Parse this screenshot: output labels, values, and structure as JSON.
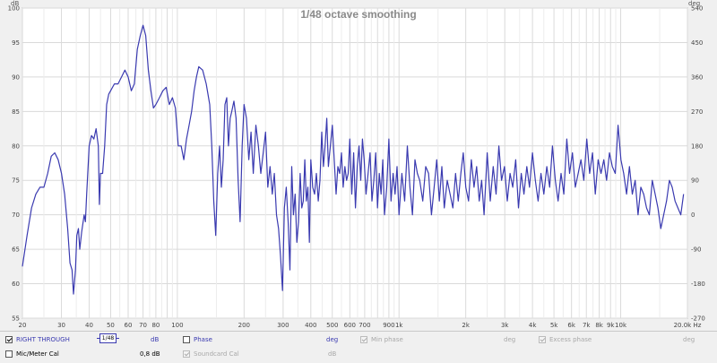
{
  "chart_data": {
    "type": "line",
    "title": "1/48 octave smoothing",
    "y_unit": "dB",
    "y2_unit": "deg",
    "x_unit": "Hz",
    "x_scale": "log",
    "xlim": [
      20,
      20000
    ],
    "ylim": [
      55,
      100
    ],
    "y2lim": [
      -270,
      540
    ],
    "grid": true,
    "y_ticks": [
      "100",
      "95",
      "90",
      "85",
      "80",
      "75",
      "70",
      "65",
      "60",
      "55"
    ],
    "y2_ticks": [
      "540",
      "450",
      "360",
      "270",
      "180",
      "90",
      "0",
      "-90",
      "-180",
      "-270"
    ],
    "x_major_ticks": [
      {
        "v": 20,
        "label": "20"
      },
      {
        "v": 30,
        "label": "30"
      },
      {
        "v": 40,
        "label": "40"
      },
      {
        "v": 50,
        "label": "50"
      },
      {
        "v": 60,
        "label": "60"
      },
      {
        "v": 70,
        "label": "70"
      },
      {
        "v": 80,
        "label": "80"
      },
      {
        "v": 90,
        "label": ""
      },
      {
        "v": 100,
        "label": "100"
      },
      {
        "v": 200,
        "label": "200"
      },
      {
        "v": 300,
        "label": "300"
      },
      {
        "v": 400,
        "label": "400"
      },
      {
        "v": 500,
        "label": "500"
      },
      {
        "v": 600,
        "label": "600"
      },
      {
        "v": 700,
        "label": "700"
      },
      {
        "v": 800,
        "label": ""
      },
      {
        "v": 900,
        "label": "900"
      },
      {
        "v": 1000,
        "label": "1k"
      },
      {
        "v": 2000,
        "label": "2k"
      },
      {
        "v": 3000,
        "label": "3k"
      },
      {
        "v": 4000,
        "label": "4k"
      },
      {
        "v": 5000,
        "label": "5k"
      },
      {
        "v": 6000,
        "label": "6k"
      },
      {
        "v": 7000,
        "label": "7k"
      },
      {
        "v": 8000,
        "label": "8k"
      },
      {
        "v": 9000,
        "label": "9k"
      },
      {
        "v": 10000,
        "label": "10k"
      },
      {
        "v": 20000,
        "label": "20.0k Hz"
      }
    ],
    "series": [
      {
        "name": "RIGHT THROUGH",
        "color": "#3a3ab0",
        "points": [
          [
            20,
            62.5
          ],
          [
            21,
            67
          ],
          [
            22,
            71
          ],
          [
            23,
            73
          ],
          [
            24,
            74
          ],
          [
            25,
            74
          ],
          [
            26,
            76
          ],
          [
            27,
            78.5
          ],
          [
            28,
            79
          ],
          [
            29,
            78
          ],
          [
            30,
            76
          ],
          [
            31,
            73
          ],
          [
            32,
            68
          ],
          [
            32.8,
            63
          ],
          [
            33.5,
            62
          ],
          [
            34,
            58.5
          ],
          [
            34.7,
            62
          ],
          [
            35.2,
            67
          ],
          [
            35.8,
            68
          ],
          [
            36.3,
            65
          ],
          [
            37,
            67.5
          ],
          [
            38,
            70
          ],
          [
            38.5,
            69
          ],
          [
            39,
            73
          ],
          [
            40,
            80
          ],
          [
            41,
            81.5
          ],
          [
            42,
            81
          ],
          [
            43,
            82.5
          ],
          [
            44,
            80
          ],
          [
            44.5,
            71.5
          ],
          [
            45,
            76
          ],
          [
            46,
            76
          ],
          [
            47,
            80
          ],
          [
            48,
            86
          ],
          [
            49,
            87.5
          ],
          [
            50,
            88
          ],
          [
            52,
            89
          ],
          [
            54,
            89
          ],
          [
            56,
            90
          ],
          [
            58,
            91
          ],
          [
            60,
            90
          ],
          [
            62,
            88
          ],
          [
            64,
            89
          ],
          [
            66,
            94
          ],
          [
            68,
            96
          ],
          [
            70,
            97.5
          ],
          [
            72,
            96
          ],
          [
            74,
            91
          ],
          [
            76,
            88
          ],
          [
            78,
            85.5
          ],
          [
            80,
            86
          ],
          [
            83,
            87
          ],
          [
            86,
            88
          ],
          [
            89,
            88.5
          ],
          [
            92,
            86
          ],
          [
            95,
            87
          ],
          [
            98,
            85.5
          ],
          [
            101,
            80
          ],
          [
            104,
            80
          ],
          [
            107,
            78
          ],
          [
            110,
            81
          ],
          [
            113,
            83
          ],
          [
            116,
            85
          ],
          [
            119,
            88
          ],
          [
            122,
            90
          ],
          [
            125,
            91.5
          ],
          [
            130,
            91
          ],
          [
            135,
            89
          ],
          [
            140,
            86
          ],
          [
            143,
            80
          ],
          [
            146,
            72
          ],
          [
            149,
            67
          ],
          [
            152,
            76
          ],
          [
            155,
            80
          ],
          [
            158,
            74
          ],
          [
            161,
            78
          ],
          [
            164,
            86
          ],
          [
            167,
            87
          ],
          [
            170,
            80
          ],
          [
            173,
            84
          ],
          [
            176,
            85
          ],
          [
            180,
            86.5
          ],
          [
            184,
            84
          ],
          [
            188,
            75
          ],
          [
            192,
            69
          ],
          [
            196,
            80
          ],
          [
            200,
            86
          ],
          [
            205,
            84
          ],
          [
            210,
            78
          ],
          [
            215,
            82
          ],
          [
            220,
            76
          ],
          [
            226,
            83
          ],
          [
            232,
            80
          ],
          [
            238,
            76
          ],
          [
            244,
            79
          ],
          [
            250,
            82
          ],
          [
            256,
            74
          ],
          [
            262,
            77
          ],
          [
            268,
            73
          ],
          [
            274,
            76
          ],
          [
            280,
            70
          ],
          [
            286,
            68
          ],
          [
            292,
            64
          ],
          [
            298,
            59
          ],
          [
            304,
            71
          ],
          [
            310,
            74
          ],
          [
            316,
            69
          ],
          [
            322,
            62
          ],
          [
            328,
            77
          ],
          [
            334,
            70
          ],
          [
            340,
            73
          ],
          [
            346,
            66
          ],
          [
            352,
            69
          ],
          [
            358,
            76
          ],
          [
            364,
            71
          ],
          [
            370,
            72
          ],
          [
            376,
            78
          ],
          [
            382,
            72
          ],
          [
            388,
            74
          ],
          [
            394,
            66
          ],
          [
            400,
            78
          ],
          [
            408,
            74
          ],
          [
            416,
            73
          ],
          [
            424,
            76
          ],
          [
            432,
            72
          ],
          [
            440,
            75
          ],
          [
            448,
            82
          ],
          [
            456,
            77
          ],
          [
            464,
            80
          ],
          [
            472,
            84
          ],
          [
            480,
            77
          ],
          [
            490,
            80
          ],
          [
            500,
            83
          ],
          [
            510,
            78
          ],
          [
            520,
            73
          ],
          [
            530,
            77
          ],
          [
            540,
            76
          ],
          [
            550,
            79
          ],
          [
            560,
            74
          ],
          [
            570,
            77
          ],
          [
            580,
            75
          ],
          [
            590,
            76
          ],
          [
            600,
            81
          ],
          [
            612,
            73
          ],
          [
            624,
            79
          ],
          [
            636,
            71
          ],
          [
            648,
            77
          ],
          [
            660,
            80
          ],
          [
            672,
            75
          ],
          [
            684,
            81
          ],
          [
            696,
            78
          ],
          [
            710,
            73
          ],
          [
            725,
            76
          ],
          [
            740,
            79
          ],
          [
            755,
            72
          ],
          [
            770,
            75
          ],
          [
            785,
            79
          ],
          [
            800,
            71
          ],
          [
            815,
            76
          ],
          [
            830,
            73
          ],
          [
            845,
            78
          ],
          [
            860,
            70
          ],
          [
            880,
            74
          ],
          [
            900,
            81
          ],
          [
            920,
            72
          ],
          [
            940,
            76
          ],
          [
            960,
            73
          ],
          [
            980,
            77
          ],
          [
            1000,
            70
          ],
          [
            1030,
            76
          ],
          [
            1060,
            72
          ],
          [
            1090,
            80
          ],
          [
            1120,
            74
          ],
          [
            1150,
            70
          ],
          [
            1180,
            78
          ],
          [
            1210,
            76
          ],
          [
            1240,
            75
          ],
          [
            1280,
            72
          ],
          [
            1320,
            77
          ],
          [
            1360,
            76
          ],
          [
            1400,
            70
          ],
          [
            1440,
            74
          ],
          [
            1480,
            78
          ],
          [
            1520,
            72
          ],
          [
            1560,
            77
          ],
          [
            1600,
            71
          ],
          [
            1650,
            75
          ],
          [
            1700,
            73
          ],
          [
            1750,
            71
          ],
          [
            1800,
            76
          ],
          [
            1850,
            72
          ],
          [
            1900,
            76
          ],
          [
            1950,
            79
          ],
          [
            2000,
            74
          ],
          [
            2060,
            72
          ],
          [
            2120,
            78
          ],
          [
            2180,
            74
          ],
          [
            2240,
            77
          ],
          [
            2300,
            72
          ],
          [
            2360,
            75
          ],
          [
            2420,
            70
          ],
          [
            2500,
            79
          ],
          [
            2580,
            72
          ],
          [
            2660,
            77
          ],
          [
            2740,
            73
          ],
          [
            2820,
            80
          ],
          [
            2900,
            75
          ],
          [
            2990,
            77
          ],
          [
            3080,
            72
          ],
          [
            3170,
            76
          ],
          [
            3260,
            74
          ],
          [
            3360,
            78
          ],
          [
            3460,
            71
          ],
          [
            3560,
            76
          ],
          [
            3660,
            73
          ],
          [
            3770,
            77
          ],
          [
            3880,
            74
          ],
          [
            4000,
            79
          ],
          [
            4120,
            75
          ],
          [
            4240,
            72
          ],
          [
            4370,
            76
          ],
          [
            4500,
            73
          ],
          [
            4640,
            77
          ],
          [
            4780,
            74
          ],
          [
            4920,
            80
          ],
          [
            5070,
            75
          ],
          [
            5220,
            72
          ],
          [
            5380,
            76
          ],
          [
            5540,
            73
          ],
          [
            5710,
            81
          ],
          [
            5880,
            76
          ],
          [
            6060,
            79
          ],
          [
            6240,
            74
          ],
          [
            6430,
            76
          ],
          [
            6620,
            78
          ],
          [
            6820,
            75
          ],
          [
            7030,
            81
          ],
          [
            7240,
            76
          ],
          [
            7460,
            79
          ],
          [
            7680,
            73
          ],
          [
            7910,
            78
          ],
          [
            8150,
            76
          ],
          [
            8390,
            78
          ],
          [
            8640,
            75
          ],
          [
            8900,
            79
          ],
          [
            9170,
            77
          ],
          [
            9450,
            76
          ],
          [
            9730,
            83
          ],
          [
            10020,
            78
          ],
          [
            10320,
            76
          ],
          [
            10630,
            73
          ],
          [
            10950,
            77
          ],
          [
            11280,
            73
          ],
          [
            11620,
            75
          ],
          [
            11970,
            70
          ],
          [
            12330,
            74
          ],
          [
            12700,
            73
          ],
          [
            13080,
            71
          ],
          [
            13470,
            70
          ],
          [
            13880,
            75
          ],
          [
            14300,
            73
          ],
          [
            14730,
            71
          ],
          [
            15170,
            68
          ],
          [
            15630,
            70
          ],
          [
            16100,
            72
          ],
          [
            16580,
            75
          ],
          [
            17080,
            74
          ],
          [
            17590,
            72
          ],
          [
            18120,
            71
          ],
          [
            18660,
            70
          ],
          [
            19220,
            73
          ]
        ]
      }
    ]
  },
  "controls": {
    "trace_name": "RIGHT THROUGH",
    "smoothing_value": "1/48",
    "trace_unit": "dB",
    "phase_label": "Phase",
    "phase_unit": "deg",
    "min_phase_label": "Min phase",
    "min_phase_unit": "deg",
    "excess_phase_label": "Excess phase",
    "excess_phase_unit": "deg",
    "mic_cal_label": "Mic/Meter Cal",
    "mic_cal_value": "0,8 dB",
    "soundcard_cal_label": "Soundcard Cal",
    "soundcard_cal_unit": "dB"
  },
  "colors": {
    "trace": "#3a3ab0",
    "grid": "#dadada",
    "title": "#8a8a8a",
    "plot_bg": "#ffffff"
  }
}
